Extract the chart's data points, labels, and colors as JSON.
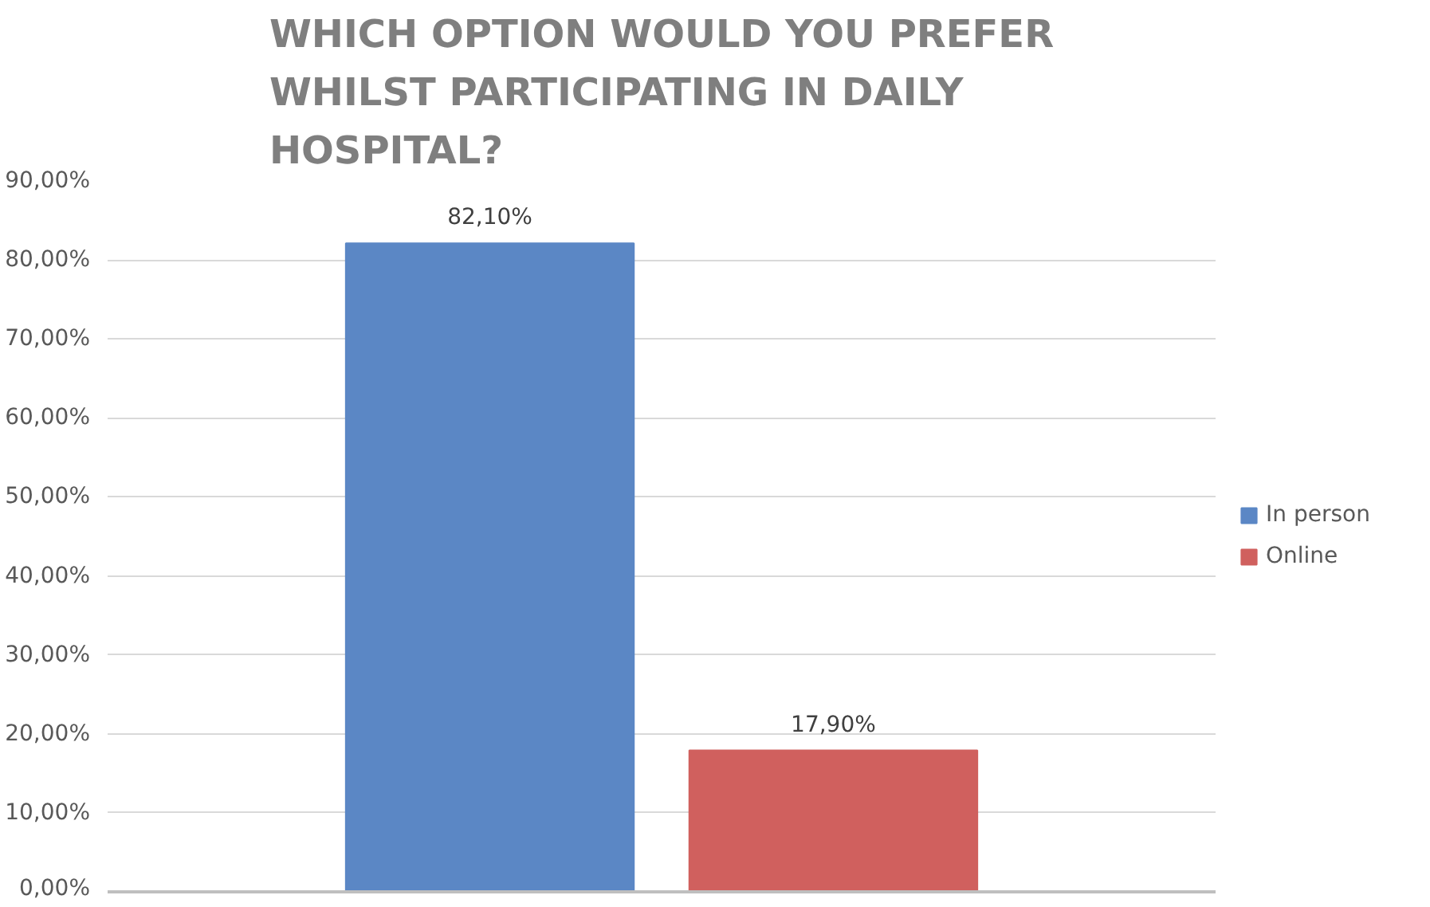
{
  "chart_data": {
    "type": "bar",
    "title": "WHICH OPTION WOULD YOU PREFER WHILST PARTICIPATING IN DAILY HOSPITAL?",
    "categories": [
      null
    ],
    "series": [
      {
        "name": "In person",
        "color": "#5b87c5",
        "values": [
          82.1
        ],
        "value_labels": [
          "82,10%"
        ]
      },
      {
        "name": "Online",
        "color": "#d0605e",
        "values": [
          17.9
        ],
        "value_labels": [
          "17,90%"
        ]
      }
    ],
    "ylim": [
      0,
      90
    ],
    "yticks": [
      {
        "value": 0,
        "label": "0,00%"
      },
      {
        "value": 10,
        "label": "10,00%"
      },
      {
        "value": 20,
        "label": "20,00%"
      },
      {
        "value": 30,
        "label": "30,00%"
      },
      {
        "value": 40,
        "label": "40,00%"
      },
      {
        "value": 50,
        "label": "50,00%"
      },
      {
        "value": 60,
        "label": "60,00%"
      },
      {
        "value": 70,
        "label": "70,00%"
      },
      {
        "value": 80,
        "label": "80,00%"
      },
      {
        "value": 90,
        "label": "90,00%"
      }
    ],
    "grid": "y",
    "legend": "right"
  }
}
